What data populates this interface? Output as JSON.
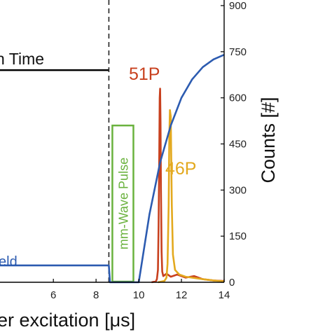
{
  "chart_data": {
    "type": "line",
    "x_axis": {
      "label": "er excitation [μs]",
      "ticks": [
        6,
        8,
        10,
        12,
        14
      ],
      "range": [
        3.5,
        14
      ]
    },
    "y_axis_right": {
      "label": "Counts [#]",
      "ticks": [
        0,
        150,
        300,
        450,
        600,
        750,
        900
      ],
      "range": [
        0,
        900
      ]
    },
    "annotations": {
      "time_label": "n Time",
      "time_bar": {
        "x_start": 3.5,
        "x_end": 8.6,
        "y": 690
      },
      "dashed_line_x": 8.6,
      "pulse_label": "mm-Wave Pulse",
      "pulse_box": {
        "x_start": 8.6,
        "x_end": 9.75,
        "y_start": 0,
        "y_end": 510
      },
      "field_label": "eld"
    },
    "series": [
      {
        "name": "51P",
        "color": "#c8401e",
        "x": [
          10.6,
          10.8,
          10.85,
          10.9,
          10.93,
          10.96,
          10.98,
          11.0,
          11.02,
          11.04,
          11.07,
          11.1,
          11.15,
          11.3,
          11.5,
          11.8,
          12.2,
          12.6,
          13.0,
          13.5,
          14.0
        ],
        "y": [
          0,
          3,
          10,
          40,
          180,
          420,
          600,
          630,
          520,
          300,
          100,
          35,
          20,
          28,
          18,
          25,
          15,
          20,
          10,
          6,
          4
        ]
      },
      {
        "name": "46P",
        "color": "#e3a91e",
        "x": [
          10.9,
          11.2,
          11.3,
          11.35,
          11.4,
          11.43,
          11.46,
          11.5,
          11.52,
          11.55,
          11.6,
          11.7,
          11.9,
          12.2,
          12.6,
          13.0,
          13.5,
          14.0
        ],
        "y": [
          0,
          4,
          15,
          60,
          250,
          470,
          560,
          540,
          420,
          250,
          90,
          40,
          25,
          18,
          14,
          10,
          6,
          3
        ]
      },
      {
        "name": "eld",
        "color": "#2c5bb0",
        "x": [
          3.5,
          8.6,
          8.65,
          10.0,
          10.5,
          11.0,
          11.5,
          12.0,
          12.5,
          13.0,
          13.5,
          14.0
        ],
        "y": [
          55,
          55,
          0,
          0,
          220,
          390,
          510,
          600,
          660,
          700,
          725,
          740
        ]
      }
    ]
  }
}
